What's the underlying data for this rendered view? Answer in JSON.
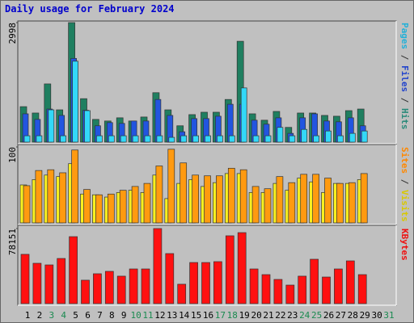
{
  "chart_data": {
    "type": "bar",
    "title": "Daily usage for February 2024",
    "categories": [
      "1",
      "2",
      "3",
      "4",
      "5",
      "6",
      "7",
      "8",
      "9",
      "10",
      "11",
      "12",
      "13",
      "14",
      "15",
      "16",
      "17",
      "18",
      "19",
      "20",
      "21",
      "22",
      "23",
      "24",
      "25",
      "26",
      "27",
      "28",
      "29",
      "30",
      "31"
    ],
    "weekend_categories": [
      "3",
      "4",
      "10",
      "11",
      "17",
      "18",
      "24",
      "25",
      "31"
    ],
    "category_color": "#000000",
    "weekend_color": "#1a8a50",
    "separator": " / ",
    "panels": [
      {
        "ylim": [
          0,
          2998
        ],
        "yticks": [
          2998
        ],
        "series": [
          {
            "name": "Hits",
            "color": "#1f7f60",
            "label_color": "#2a8a7a",
            "values": [
              890,
              730,
              1460,
              810,
              2998,
              1090,
              570,
              530,
              610,
              530,
              630,
              1240,
              810,
              410,
              690,
              750,
              750,
              1070,
              2530,
              710,
              550,
              770,
              370,
              730,
              730,
              670,
              650,
              790,
              830,
              null,
              null
            ]
          },
          {
            "name": "Files",
            "color": "#2255e0",
            "label_color": "#2244cc",
            "values": [
              710,
              570,
              830,
              670,
              2100,
              800,
              410,
              490,
              470,
              530,
              530,
              1070,
              670,
              260,
              590,
              590,
              650,
              950,
              950,
              550,
              450,
              610,
              220,
              610,
              710,
              530,
              510,
              610,
              410,
              null,
              null
            ]
          },
          {
            "name": "Pages",
            "color": "#33d8f8",
            "label_color": "#22b0d8",
            "values": [
              160,
              160,
              810,
              160,
              2030,
              790,
              160,
              160,
              160,
              160,
              160,
              160,
              120,
              160,
              160,
              160,
              160,
              160,
              1360,
              160,
              160,
              370,
              160,
              320,
              160,
              280,
              160,
              220,
              280,
              null,
              null
            ]
          }
        ]
      },
      {
        "ylim": [
          0,
          100
        ],
        "yticks": [
          100
        ],
        "series": [
          {
            "name": "Visits",
            "color": "#f8f020",
            "label_color": "#d8c800",
            "values": [
              50,
              57,
              63,
              61,
              78,
              38,
              37,
              34,
              40,
              43,
              40,
              63,
              32,
              52,
              57,
              48,
              53,
              65,
              65,
              40,
              40,
              52,
              43,
              59,
              54,
              40,
              52,
              52,
              57,
              null,
              null
            ]
          },
          {
            "name": "Sites",
            "color": "#ff9a10",
            "label_color": "#ff8800",
            "values": [
              49,
              69,
              70,
              66,
              96,
              44,
              37,
              38,
              43,
              48,
              52,
              75,
              97,
              79,
              63,
              62,
              62,
              72,
              70,
              48,
              45,
              61,
              53,
              64,
              64,
              59,
              52,
              53,
              65,
              null,
              null
            ]
          }
        ]
      },
      {
        "ylim": [
          0,
          78151
        ],
        "yticks": [
          78151
        ],
        "series": [
          {
            "name": "KBytes",
            "color": "#ff1010",
            "label_color": "#ee1111",
            "values": [
              51300,
              42000,
              40300,
              47000,
              69700,
              24400,
              31100,
              33600,
              28600,
              36100,
              36100,
              78151,
              52100,
              20200,
              42800,
              42800,
              43700,
              70600,
              73900,
              36100,
              30200,
              25200,
              19300,
              28600,
              46200,
              27700,
              36100,
              44500,
              30200,
              null,
              null
            ]
          }
        ]
      }
    ]
  }
}
